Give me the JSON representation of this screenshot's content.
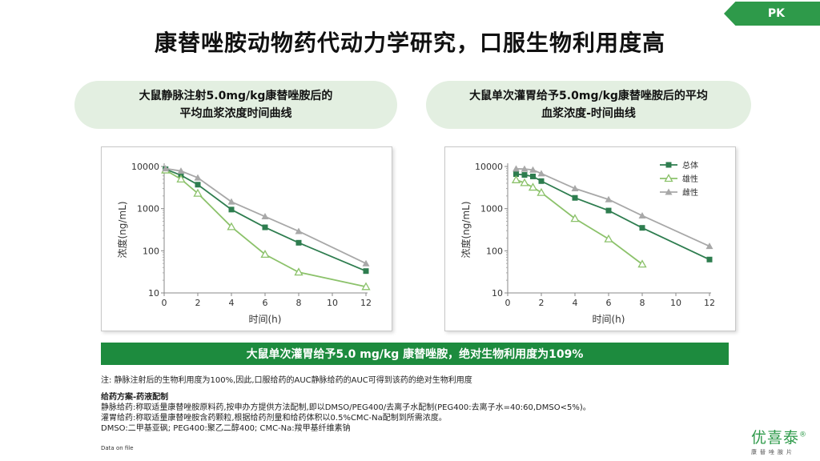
{
  "pk_tag": "PK",
  "title": "康替唑胺动物药代动力学研究，口服生物利用度高",
  "left_pill": {
    "line1": "大鼠静脉注射5.0mg/kg康替唑胺后的",
    "line2": "平均血浆浓度时间曲线"
  },
  "right_pill": {
    "line1": "大鼠单次灌胃给予5.0mg/kg康替唑胺后的平均",
    "line2": "血浆浓度-时间曲线"
  },
  "banner": "大鼠单次灌胃给予5.0 mg/kg 康替唑胺，绝对生物利用度为109%",
  "note": "注: 静脉注射后的生物利用度为100%,因此,口服给药的AUC静脉给药的AUC可得到该药的绝对生物利用度",
  "regimen": {
    "heading": "给药方案-药液配制",
    "lines": [
      "静脉给药:称取适量康替唑胺原料药,按申办方提供方法配制,即以DMSO/PEG400/去离子水配制(PEG400:去离子水=40:60,DMSO<5%)。",
      "灌胃给药:称取适量康替唑胺含药颗粒,根据给药剂量和给药体积以0.5%CMC-Na配制到所需浓度。",
      "DMSO:二甲基亚砜; PEG400:聚乙二醇400; CMC-Na:羧甲基纤维素钠"
    ]
  },
  "footer": "Data on file",
  "logo": {
    "name": "优喜泰",
    "mark": "®",
    "sub": "康替唑胺片"
  },
  "colors": {
    "total": "#2e7d4f",
    "male": "#8cc26b",
    "female": "#a8a8a8",
    "banner": "#1d8b3e",
    "pill": "#e3efe1"
  },
  "chart_data": [
    {
      "type": "line",
      "y_scale": "log",
      "xlabel": "时间(h)",
      "ylabel": "浓度(ng/mL)",
      "xlim": [
        0,
        12
      ],
      "ylim": [
        10,
        10000
      ],
      "x_ticks": [
        "0",
        "2",
        "4",
        "6",
        "8",
        "10",
        "12"
      ],
      "y_ticks": [
        "10",
        "100",
        "1000",
        "10000"
      ],
      "legend": "none",
      "series": [
        {
          "name": "总体",
          "marker": "square",
          "color": "#2e7d4f",
          "x": [
            0.083,
            1,
            2,
            4,
            6,
            8,
            12
          ],
          "y": [
            8600,
            6200,
            3700,
            950,
            360,
            155,
            33
          ]
        },
        {
          "name": "雄性",
          "marker": "triangle-open",
          "color": "#8cc26b",
          "x": [
            0.083,
            1,
            2,
            4,
            6,
            8,
            12
          ],
          "y": [
            8200,
            5000,
            2300,
            370,
            82,
            31,
            14
          ]
        },
        {
          "name": "雌性",
          "marker": "triangle",
          "color": "#a8a8a8",
          "x": [
            0.083,
            1,
            2,
            4,
            6,
            8,
            12
          ],
          "y": [
            8900,
            7800,
            5400,
            1450,
            650,
            290,
            50
          ]
        }
      ]
    },
    {
      "type": "line",
      "y_scale": "log",
      "xlabel": "时间(h)",
      "ylabel": "浓度(ng/mL)",
      "xlim": [
        0,
        12
      ],
      "ylim": [
        10,
        10000
      ],
      "x_ticks": [
        "0",
        "2",
        "4",
        "6",
        "8",
        "10",
        "12"
      ],
      "y_ticks": [
        "10",
        "100",
        "1000",
        "10000"
      ],
      "legend": "top-right",
      "series": [
        {
          "name": "总体",
          "marker": "square",
          "color": "#2e7d4f",
          "x": [
            0.5,
            1,
            1.5,
            2,
            4,
            6,
            8,
            12
          ],
          "y": [
            6600,
            6300,
            5800,
            4500,
            1800,
            900,
            350,
            62
          ]
        },
        {
          "name": "雄性",
          "marker": "triangle-open",
          "color": "#8cc26b",
          "x": [
            0.5,
            1,
            1.5,
            2,
            4,
            6,
            8
          ],
          "y": [
            4800,
            4100,
            3200,
            2400,
            580,
            190,
            48
          ]
        },
        {
          "name": "雌性",
          "marker": "triangle",
          "color": "#a8a8a8",
          "x": [
            0.5,
            1,
            1.5,
            2,
            4,
            6,
            8,
            12
          ],
          "y": [
            8800,
            8700,
            8300,
            6800,
            3000,
            1650,
            680,
            128
          ]
        }
      ]
    }
  ]
}
